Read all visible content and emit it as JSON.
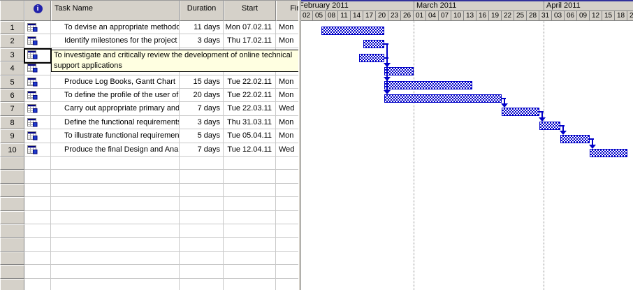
{
  "tooltip": {
    "text": "To investigate and critically review the development of online technical support applications"
  },
  "table": {
    "header": {
      "row_number": "",
      "info_icon": "i",
      "task_name": "Task Name",
      "duration": "Duration",
      "start": "Start",
      "finish": "Finish"
    },
    "empty_rows": 10
  },
  "colors": {
    "bar_blue": "#0000c8",
    "header_bg": "#d5d1c9",
    "tooltip_bg": "#ffffe1",
    "grid_line": "#c9c9c9"
  },
  "chart_data": {
    "type": "gantt",
    "day0_date": "01 February 2011",
    "timescale": {
      "months": [
        {
          "label": "February 2011",
          "startDay": 0,
          "days": 28
        },
        {
          "label": "March 2011",
          "startDay": 28,
          "days": 31
        },
        {
          "label": "April 2011",
          "startDay": 59,
          "days": 22
        }
      ],
      "tick_interval_days": 3,
      "ticks": [
        "02",
        "05",
        "08",
        "11",
        "14",
        "17",
        "20",
        "23",
        "26",
        "01",
        "04",
        "07",
        "10",
        "13",
        "16",
        "19",
        "22",
        "25",
        "28",
        "31",
        "03",
        "06",
        "09",
        "12",
        "15",
        "18",
        "21"
      ]
    },
    "month_gridline_days": [
      28,
      59
    ],
    "tasks": [
      {
        "num": "1",
        "name": "To devise an appropriate methodo",
        "duration": "11 days",
        "start": "Mon 07.02.11",
        "finish_visible": "Mon",
        "bar": {
          "startDay": 6,
          "endDay": 21
        }
      },
      {
        "num": "2",
        "name": "Identify milestones for the project",
        "duration": "3 days",
        "start": "Thu 17.02.11",
        "finish_visible": "Mon",
        "bar": {
          "startDay": 16,
          "endDay": 21
        }
      },
      {
        "num": "3",
        "name": "",
        "duration": "",
        "start": "",
        "finish_visible": "",
        "bar": {
          "startDay": 15,
          "endDay": 21
        }
      },
      {
        "num": "4",
        "name": "",
        "duration": "",
        "start": "",
        "finish_visible": "",
        "bar": {
          "startDay": 21,
          "endDay": 28
        }
      },
      {
        "num": "5",
        "name": "Produce Log Books,  Gantt Chart",
        "duration": "15 days",
        "start": "Tue 22.02.11",
        "finish_visible": "Mon",
        "bar": {
          "startDay": 21,
          "endDay": 42
        }
      },
      {
        "num": "6",
        "name": "To define the profile of the user of",
        "duration": "20 days",
        "start": "Tue 22.02.11",
        "finish_visible": "Mon",
        "bar": {
          "startDay": 21,
          "endDay": 49
        }
      },
      {
        "num": "7",
        "name": "Carry out appropriate primary and",
        "duration": "7 days",
        "start": "Tue 22.03.11",
        "finish_visible": "Wed",
        "bar": {
          "startDay": 49,
          "endDay": 58
        }
      },
      {
        "num": "8",
        "name": "Define the functional requirements",
        "duration": "3 days",
        "start": "Thu 31.03.11",
        "finish_visible": "Mon",
        "bar": {
          "startDay": 58,
          "endDay": 63
        }
      },
      {
        "num": "9",
        "name": "To illustrate functional requirement",
        "duration": "5 days",
        "start": "Tue 05.04.11",
        "finish_visible": "Mon",
        "bar": {
          "startDay": 63,
          "endDay": 70
        }
      },
      {
        "num": "10",
        "name": "Produce the final Design and Anal",
        "duration": "7 days",
        "start": "Tue 12.04.11",
        "finish_visible": "Wed",
        "bar": {
          "startDay": 70,
          "endDay": 79
        }
      }
    ],
    "links": [
      {
        "from": 2,
        "to": 4
      },
      {
        "from": 3,
        "to": 4
      },
      {
        "from": 3,
        "to": 5
      },
      {
        "from": 3,
        "to": 6
      },
      {
        "from": 6,
        "to": 7
      },
      {
        "from": 7,
        "to": 8
      },
      {
        "from": 8,
        "to": 9
      },
      {
        "from": 9,
        "to": 10
      }
    ]
  }
}
